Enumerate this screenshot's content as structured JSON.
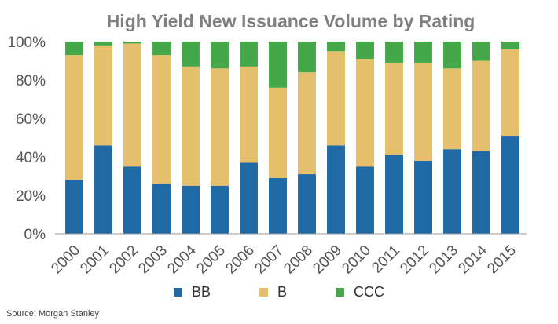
{
  "chart_data": {
    "type": "bar",
    "stacked": true,
    "title": "High Yield New Issuance Volume by Rating",
    "xlabel": "",
    "ylabel": "",
    "categories": [
      "2000",
      "2001",
      "2002",
      "2003",
      "2004",
      "2005",
      "2006",
      "2007",
      "2008",
      "2009",
      "2010",
      "2011",
      "2012",
      "2013",
      "2014",
      "2015"
    ],
    "series": [
      {
        "name": "BB",
        "color": "#1f6aa5",
        "values": [
          28,
          46,
          35,
          26,
          25,
          25,
          37,
          29,
          31,
          46,
          35,
          41,
          38,
          44,
          43,
          51
        ]
      },
      {
        "name": "B",
        "color": "#e5c06c",
        "values": [
          65,
          52,
          64,
          67,
          62,
          61,
          50,
          47,
          53,
          49,
          56,
          48,
          51,
          42,
          47,
          45
        ]
      },
      {
        "name": "CCC",
        "color": "#44a84a",
        "values": [
          7,
          2,
          1,
          7,
          13,
          14,
          13,
          24,
          16,
          5,
          9,
          11,
          11,
          14,
          10,
          4
        ]
      }
    ],
    "ylim": [
      0,
      100
    ],
    "yticks": [
      "0%",
      "20%",
      "40%",
      "60%",
      "80%",
      "100%"
    ],
    "grid": false,
    "legend": "bottom",
    "source": "Source: Morgan Stanley"
  }
}
